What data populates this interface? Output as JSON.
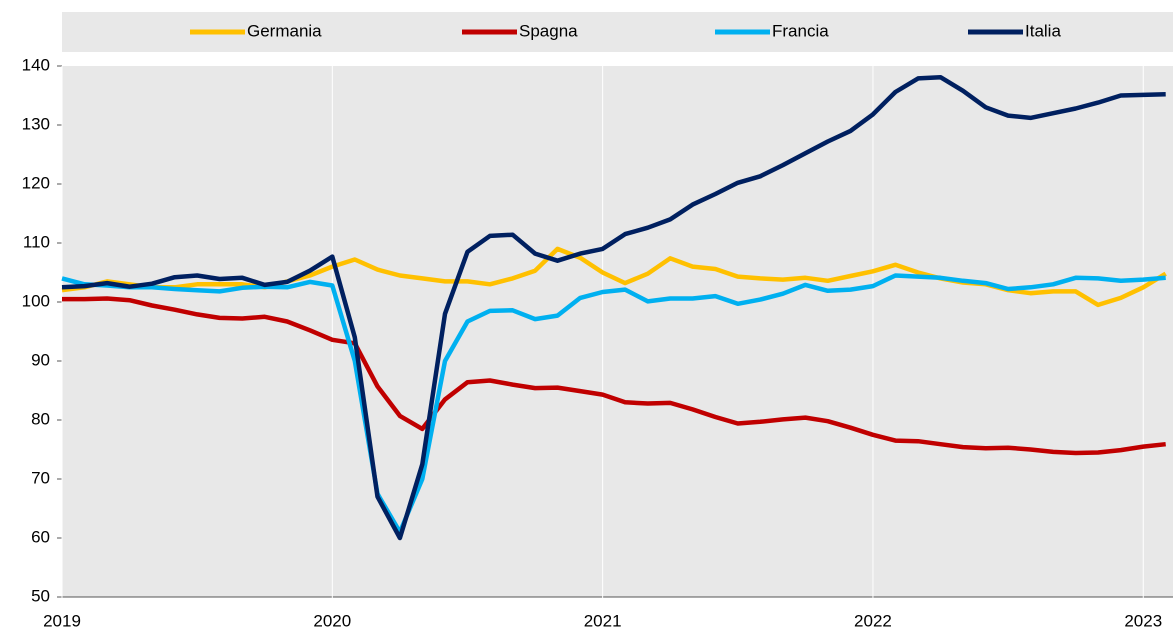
{
  "chart_data": {
    "type": "line",
    "x": [
      2019.0,
      2019.083,
      2019.167,
      2019.25,
      2019.333,
      2019.417,
      2019.5,
      2019.583,
      2019.667,
      2019.75,
      2019.833,
      2019.917,
      2020.0,
      2020.083,
      2020.167,
      2020.25,
      2020.333,
      2020.417,
      2020.5,
      2020.583,
      2020.667,
      2020.75,
      2020.833,
      2020.917,
      2021.0,
      2021.083,
      2021.167,
      2021.25,
      2021.333,
      2021.417,
      2021.5,
      2021.583,
      2021.667,
      2021.75,
      2021.833,
      2021.917,
      2022.0,
      2022.083,
      2022.167,
      2022.25,
      2022.333,
      2022.417,
      2022.5,
      2022.583,
      2022.667,
      2022.75,
      2022.833,
      2022.917,
      2023.0,
      2023.083
    ],
    "series": [
      {
        "name": "Germania",
        "color": "#ffc000",
        "values": [
          102,
          102.5,
          103.5,
          103,
          102.5,
          102.5,
          103,
          103,
          103,
          102.5,
          103.5,
          104.5,
          106,
          107.2,
          105.5,
          104.5,
          104,
          103.5,
          103.5,
          103,
          104,
          105.3,
          109,
          107.5,
          105,
          103.2,
          104.8,
          107.4,
          106,
          105.6,
          104.3,
          104,
          103.8,
          104.1,
          103.6,
          104.4,
          105.2,
          106.3,
          105,
          104,
          103.3,
          103,
          102,
          101.5,
          101.8,
          101.8,
          99.5,
          100.7,
          102.5,
          104.8
        ]
      },
      {
        "name": "Spagna",
        "color": "#c00000",
        "values": [
          100.5,
          100.5,
          100.6,
          100.3,
          99.4,
          98.7,
          97.9,
          97.3,
          97.2,
          97.5,
          96.7,
          95.2,
          93.6,
          93,
          85.7,
          80.7,
          78.5,
          83.5,
          86.4,
          86.7,
          86,
          85.4,
          85.5,
          84.9,
          84.3,
          83,
          82.8,
          82.9,
          81.8,
          80.5,
          79.4,
          79.7,
          80.1,
          80.4,
          79.8,
          78.7,
          77.5,
          76.5,
          76.4,
          75.9,
          75.4,
          75.2,
          75.3,
          75,
          74.6,
          74.4,
          74.5,
          74.9,
          75.5,
          75.9
        ]
      },
      {
        "name": "Francia",
        "color": "#00b0f0",
        "values": [
          104,
          103,
          102.8,
          102.5,
          102.5,
          102.2,
          102,
          101.8,
          102.4,
          102.6,
          102.5,
          103.4,
          102.8,
          90,
          67.5,
          61,
          70,
          90,
          96.7,
          98.5,
          98.6,
          97.1,
          97.7,
          100.7,
          101.7,
          102.1,
          100.1,
          100.6,
          100.6,
          101,
          99.7,
          100.4,
          101.4,
          102.9,
          101.9,
          102.1,
          102.7,
          104.5,
          104.3,
          104.1,
          103.6,
          103.2,
          102.2,
          102.5,
          103,
          104.1,
          104,
          103.6,
          103.8,
          104.1
        ]
      },
      {
        "name": "Italia",
        "color": "#002060",
        "values": [
          102.5,
          102.7,
          103.2,
          102.6,
          103.1,
          104.2,
          104.5,
          103.9,
          104.1,
          102.9,
          103.4,
          105.3,
          107.7,
          94,
          67,
          60,
          72.5,
          98,
          108.5,
          111.2,
          111.4,
          108.2,
          107,
          108.2,
          109,
          111.5,
          112.6,
          114,
          116.5,
          118.3,
          120.2,
          121.3,
          123.2,
          125.2,
          127.2,
          129,
          131.8,
          135.6,
          137.9,
          138.1,
          135.8,
          133,
          131.6,
          131.2,
          132,
          132.8,
          133.8,
          135,
          135.1,
          135.2
        ]
      }
    ],
    "xlim": [
      2019,
      2023.11
    ],
    "xticks": [
      2019,
      2020,
      2021,
      2022,
      2023
    ],
    "ylim": [
      50,
      140
    ],
    "yticks": [
      50,
      60,
      70,
      80,
      90,
      100,
      110,
      120,
      130,
      140
    ],
    "legend": "top"
  }
}
